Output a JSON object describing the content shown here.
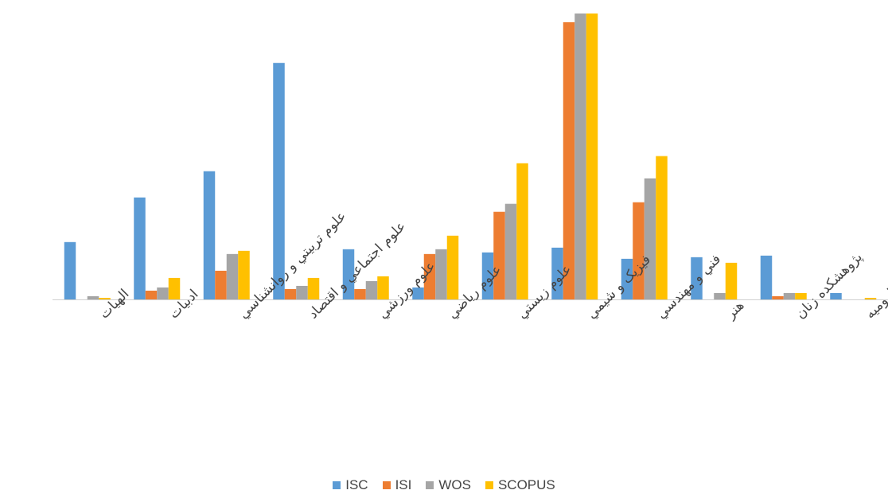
{
  "chart_data": {
    "type": "bar",
    "categories": [
      "الهيات",
      "ادبيات",
      "علوم تربيتي و روانشناسي",
      "علوم اجتماعي و اقتصاد",
      "علوم ورزشي",
      "علوم رياضي",
      "علوم زيستي",
      "فيزيک و شيمي",
      "فني و مهندسي",
      "هنر",
      "پژوهشکده زنان",
      "اروميه"
    ],
    "series": [
      {
        "name": "ISC",
        "color": "#5B9BD5",
        "values": [
          72,
          128,
          161,
          297,
          63,
          15,
          59,
          65,
          51,
          53,
          55,
          8
        ]
      },
      {
        "name": "ISI",
        "color": "#ED7D31",
        "values": [
          0,
          11,
          36,
          13,
          13,
          57,
          110,
          348,
          122,
          0,
          4,
          0
        ]
      },
      {
        "name": "WOS",
        "color": "#A5A5A5",
        "values": [
          4,
          15,
          57,
          17,
          23,
          63,
          120,
          359,
          152,
          8,
          8,
          0
        ]
      },
      {
        "name": "SCOPUS",
        "color": "#FFC000",
        "values": [
          2,
          27,
          61,
          27,
          29,
          80,
          171,
          359,
          180,
          46,
          8,
          2
        ]
      }
    ],
    "ylim": [
      0,
      360
    ],
    "grid": false,
    "legend_position": "bottom"
  }
}
